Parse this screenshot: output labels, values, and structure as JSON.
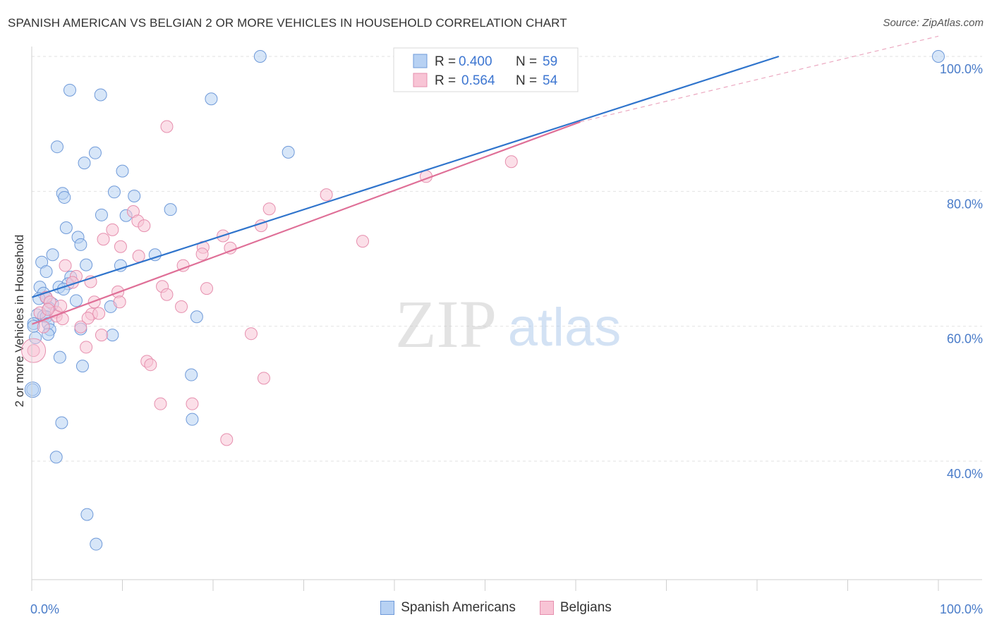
{
  "title": "SPANISH AMERICAN VS BELGIAN 2 OR MORE VEHICLES IN HOUSEHOLD CORRELATION CHART",
  "source": "Source: ZipAtlas.com",
  "watermark": {
    "zip": "ZIP",
    "atlas": "atlas"
  },
  "colors": {
    "blue_fill": "#b7d1f3",
    "blue_stroke": "#6f9ad9",
    "blue_line": "#2f74cc",
    "pink_fill": "#f8c4d5",
    "pink_stroke": "#e68fae",
    "pink_line": "#df6f97",
    "tick_text": "#4a7cc9",
    "grid": "#e2e2e2"
  },
  "legend": {
    "rows": [
      {
        "r_label": "R =",
        "r_value": "0.400",
        "n_label": "N =",
        "n_value": "59"
      },
      {
        "r_label": "R =",
        "r_value": "0.564",
        "n_label": "N =",
        "n_value": "54"
      }
    ]
  },
  "bottom_legend": [
    "Spanish Americans",
    "Belgians"
  ],
  "chart_data": {
    "type": "scatter",
    "title": "SPANISH AMERICAN VS BELGIAN 2 OR MORE VEHICLES IN HOUSEHOLD CORRELATION CHART",
    "xlabel": "",
    "ylabel": "2 or more Vehicles in Household",
    "xlim": [
      0,
      100
    ],
    "ylim": [
      20,
      102
    ],
    "x_tick_labels": [
      {
        "value": 0,
        "label": "0.0%"
      },
      {
        "value": 100,
        "label": "100.0%"
      }
    ],
    "y_tick_labels": [
      {
        "value": 40,
        "label": "40.0%"
      },
      {
        "value": 60,
        "label": "60.0%"
      },
      {
        "value": 80,
        "label": "80.0%"
      },
      {
        "value": 100,
        "label": "100.0%"
      }
    ],
    "grid": true,
    "legend_position": "top-center",
    "series": [
      {
        "name": "Spanish Americans",
        "r": 0.4,
        "n": 59,
        "trend": {
          "x": [
            0,
            82.4
          ],
          "y": [
            64.3,
            100
          ]
        },
        "points": [
          [
            25.2,
            100
          ],
          [
            100,
            100
          ],
          [
            4.2,
            95
          ],
          [
            7.6,
            94.3
          ],
          [
            19.8,
            93.7
          ],
          [
            2.8,
            86.6
          ],
          [
            7.0,
            85.7
          ],
          [
            28.3,
            85.8
          ],
          [
            5.8,
            84.2
          ],
          [
            10.0,
            83
          ],
          [
            3.4,
            79.7
          ],
          [
            9.1,
            79.9
          ],
          [
            3.6,
            79.1
          ],
          [
            11.3,
            79.3
          ],
          [
            15.3,
            77.3
          ],
          [
            10.4,
            76.4
          ],
          [
            7.7,
            76.5
          ],
          [
            3.8,
            74.6
          ],
          [
            5.1,
            73.2
          ],
          [
            5.4,
            72.1
          ],
          [
            1.1,
            69.5
          ],
          [
            2.3,
            70.6
          ],
          [
            9.8,
            69
          ],
          [
            13.6,
            70.6
          ],
          [
            6.0,
            69.1
          ],
          [
            1.6,
            68.1
          ],
          [
            4.3,
            67.3
          ],
          [
            4.0,
            66.3
          ],
          [
            0.9,
            65.8
          ],
          [
            3.0,
            65.8
          ],
          [
            3.5,
            65.5
          ],
          [
            1.3,
            64.9
          ],
          [
            1.6,
            64.2
          ],
          [
            0.8,
            64.1
          ],
          [
            4.9,
            63.8
          ],
          [
            2.3,
            63.3
          ],
          [
            1.9,
            62.7
          ],
          [
            8.7,
            62.9
          ],
          [
            0.6,
            61.7
          ],
          [
            1.3,
            61.5
          ],
          [
            1.6,
            61.4
          ],
          [
            18.2,
            61.4
          ],
          [
            0.2,
            60.4
          ],
          [
            1.8,
            60.4
          ],
          [
            2.0,
            59.5
          ],
          [
            5.4,
            59.6
          ],
          [
            1.8,
            58.8
          ],
          [
            8.9,
            58.7
          ],
          [
            0.4,
            58.3
          ],
          [
            3.1,
            55.4
          ],
          [
            5.6,
            54.1
          ],
          [
            17.6,
            52.8
          ],
          [
            0.1,
            50.6
          ],
          [
            3.3,
            45.7
          ],
          [
            17.7,
            46.2
          ],
          [
            2.7,
            40.6
          ],
          [
            6.1,
            32.1
          ],
          [
            7.1,
            27.7
          ],
          [
            0.2,
            60.0
          ]
        ]
      },
      {
        "name": "Belgians",
        "r": 0.564,
        "n": 54,
        "trend": {
          "x": [
            0,
            60.5
          ],
          "y": [
            60.3,
            90.3
          ]
        },
        "trend_extension": {
          "x": [
            60.5,
            100
          ],
          "y": [
            90.3,
            103
          ]
        },
        "points": [
          [
            49.0,
            100
          ],
          [
            14.9,
            89.6
          ],
          [
            52.9,
            84.4
          ],
          [
            43.5,
            82.2
          ],
          [
            32.5,
            79.5
          ],
          [
            26.2,
            77.4
          ],
          [
            11.2,
            77
          ],
          [
            11.7,
            75.6
          ],
          [
            12.4,
            74.9
          ],
          [
            25.3,
            74.9
          ],
          [
            8.9,
            74.3
          ],
          [
            21.1,
            73.4
          ],
          [
            7.9,
            72.9
          ],
          [
            36.5,
            72.6
          ],
          [
            9.8,
            71.8
          ],
          [
            18.9,
            71.7
          ],
          [
            21.9,
            71.6
          ],
          [
            18.8,
            70.7
          ],
          [
            11.8,
            70.4
          ],
          [
            16.7,
            69
          ],
          [
            3.7,
            69
          ],
          [
            4.9,
            67.4
          ],
          [
            6.5,
            66.6
          ],
          [
            14.4,
            65.9
          ],
          [
            19.3,
            65.6
          ],
          [
            9.5,
            65.1
          ],
          [
            14.9,
            64.7
          ],
          [
            1.6,
            64.3
          ],
          [
            2.0,
            63.6
          ],
          [
            6.9,
            63.6
          ],
          [
            9.7,
            63.6
          ],
          [
            16.5,
            62.9
          ],
          [
            2.7,
            62.1
          ],
          [
            0.9,
            62.0
          ],
          [
            6.6,
            61.8
          ],
          [
            7.4,
            61.9
          ],
          [
            2.7,
            61.5
          ],
          [
            3.4,
            61.1
          ],
          [
            6.2,
            61.2
          ],
          [
            5.4,
            59.9
          ],
          [
            1.3,
            59.9
          ],
          [
            24.2,
            58.9
          ],
          [
            7.7,
            58.7
          ],
          [
            0.2,
            56.4
          ],
          [
            6.0,
            56.9
          ],
          [
            12.7,
            54.8
          ],
          [
            13.1,
            54.3
          ],
          [
            25.6,
            52.3
          ],
          [
            14.2,
            48.5
          ],
          [
            17.7,
            48.5
          ],
          [
            21.5,
            43.2
          ],
          [
            4.5,
            66.5
          ],
          [
            1.8,
            62.5
          ],
          [
            3.2,
            63.0
          ]
        ]
      }
    ]
  }
}
